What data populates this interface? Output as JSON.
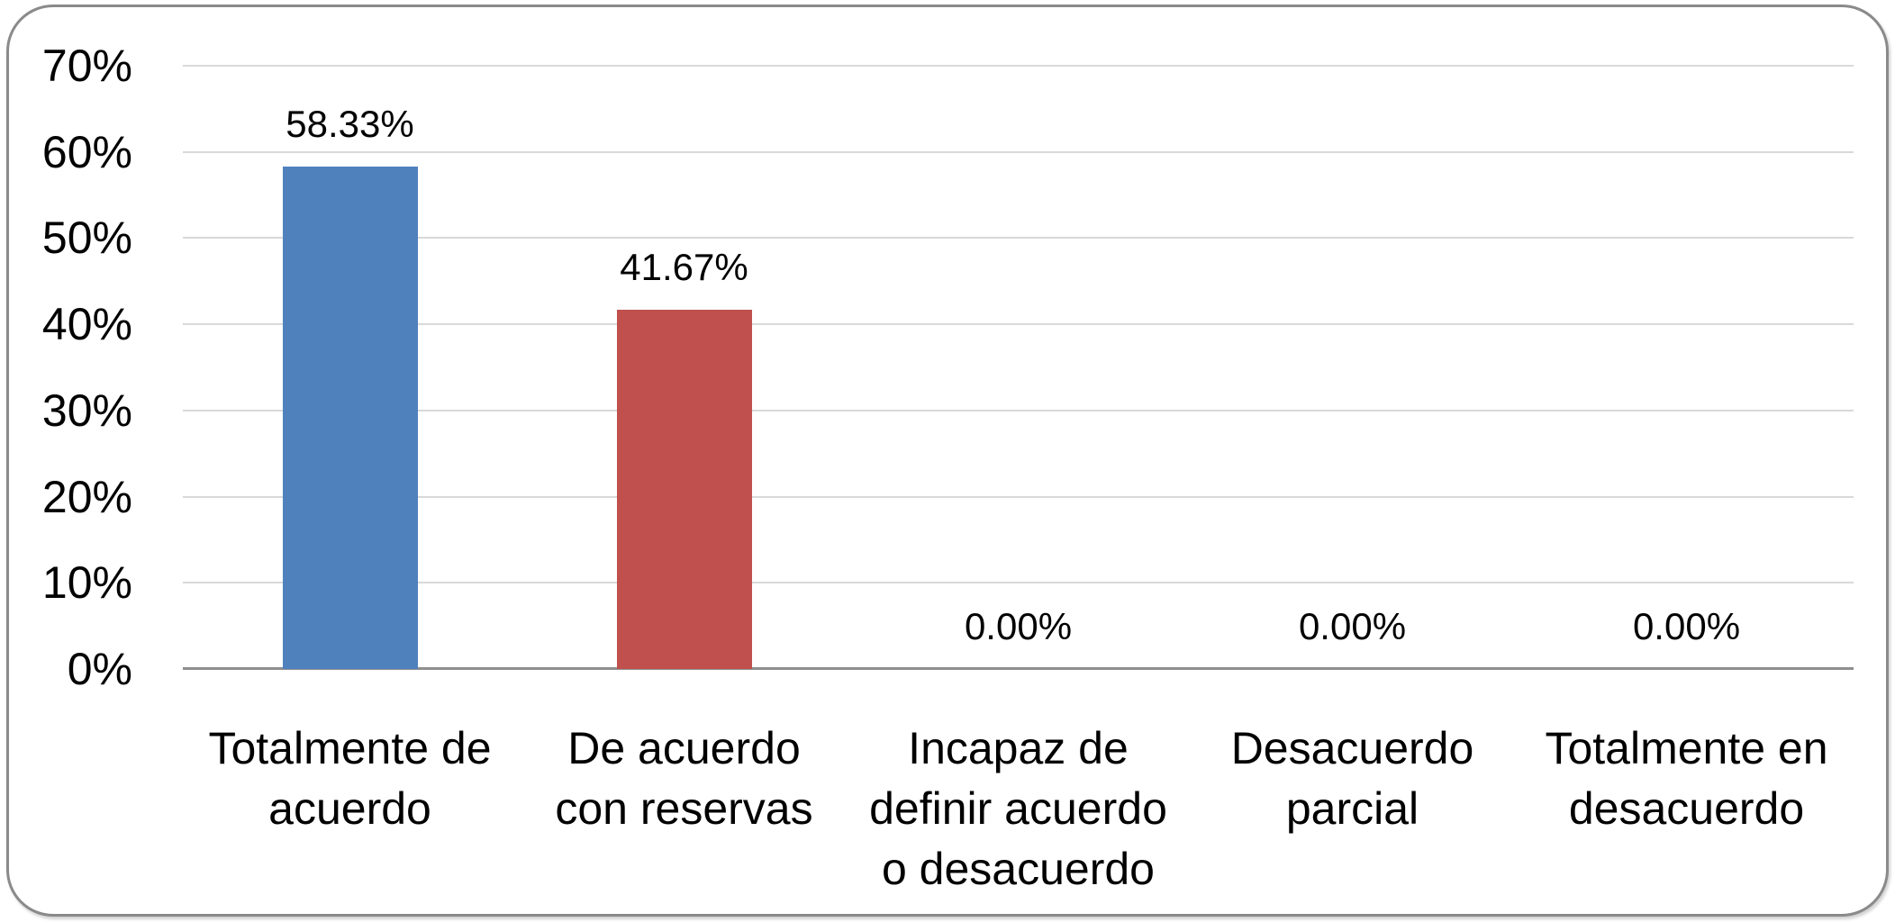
{
  "chart_data": {
    "type": "bar",
    "title": "",
    "xlabel": "",
    "ylabel": "",
    "categories": [
      "Totalmente de acuerdo",
      "De acuerdo con reservas",
      "Incapaz de definir acuerdo o desacuerdo",
      "Desacuerdo parcial",
      "Totalmente en desacuerdo"
    ],
    "category_lines": [
      [
        "Totalmente de",
        "acuerdo"
      ],
      [
        "De acuerdo",
        "con reservas"
      ],
      [
        "Incapaz de",
        "definir acuerdo",
        "o desacuerdo"
      ],
      [
        "Desacuerdo",
        "parcial"
      ],
      [
        "Totalmente en",
        "desacuerdo"
      ]
    ],
    "values": [
      58.33,
      41.67,
      0,
      0,
      0
    ],
    "data_labels": [
      "58.33%",
      "41.67%",
      "0.00%",
      "0.00%",
      "0.00%"
    ],
    "point_colors": [
      "#4F81BD",
      "#C0504D",
      null,
      null,
      null
    ],
    "y_ticks": {
      "labels": [
        "70%",
        "60%",
        "50%",
        "40%",
        "30%",
        "20%",
        "10%",
        "0%"
      ],
      "values": [
        70,
        60,
        50,
        40,
        30,
        20,
        10,
        0
      ]
    },
    "ylim": [
      0,
      70
    ],
    "grid": true,
    "legend": null,
    "colors": {
      "gridline": "#d9d9d9",
      "axis_line": "#8e8e8e",
      "frame_border": "#8a8a8a",
      "text": "#000000"
    }
  }
}
